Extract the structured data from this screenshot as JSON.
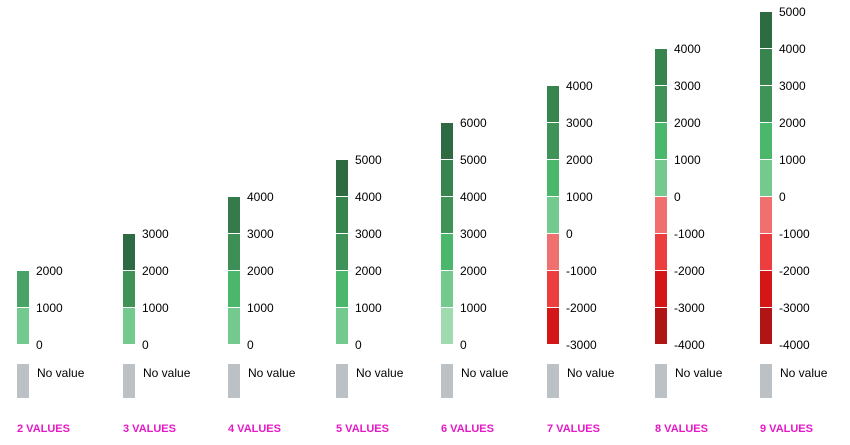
{
  "no_value_label": "No value",
  "no_value_color": "#bcc1c6",
  "caption_color": "#e619c9",
  "legends": [
    {
      "caption": "2 VALUES",
      "ticks": [
        "2000",
        "1000",
        "0"
      ],
      "colors": [
        "#4aa366",
        "#74c98e"
      ]
    },
    {
      "caption": "3 VALUES",
      "ticks": [
        "3000",
        "2000",
        "1000",
        "0"
      ],
      "colors": [
        "#2f6b42",
        "#3f9359",
        "#74c98e"
      ]
    },
    {
      "caption": "4 VALUES",
      "ticks": [
        "4000",
        "3000",
        "2000",
        "1000",
        "0"
      ],
      "colors": [
        "#357a4b",
        "#3d8f56",
        "#4ab76a",
        "#74c98e"
      ]
    },
    {
      "caption": "5 VALUES",
      "ticks": [
        "5000",
        "4000",
        "3000",
        "2000",
        "1000",
        "0"
      ],
      "colors": [
        "#2f6b42",
        "#37844f",
        "#3f9359",
        "#4ab76a",
        "#74c98e"
      ]
    },
    {
      "caption": "6 VALUES",
      "ticks": [
        "6000",
        "5000",
        "4000",
        "3000",
        "2000",
        "1000",
        "0"
      ],
      "colors": [
        "#2f6b42",
        "#37844f",
        "#3f9359",
        "#4ab76a",
        "#74c98e",
        "#a0dbb0"
      ]
    },
    {
      "caption": "7 VALUES",
      "ticks": [
        "4000",
        "3000",
        "2000",
        "1000",
        "0",
        "-1000",
        "-2000",
        "-3000"
      ],
      "colors": [
        "#37844f",
        "#3f9359",
        "#4ab76a",
        "#74c98e",
        "#f07070",
        "#ec3e3e",
        "#d41616"
      ]
    },
    {
      "caption": "8 VALUES",
      "ticks": [
        "4000",
        "3000",
        "2000",
        "1000",
        "0",
        "-1000",
        "-2000",
        "-3000",
        "-4000"
      ],
      "colors": [
        "#37844f",
        "#3f9359",
        "#4ab76a",
        "#74c98e",
        "#f07070",
        "#ec3e3e",
        "#d41616",
        "#b01515"
      ]
    },
    {
      "caption": "9 VALUES",
      "ticks": [
        "5000",
        "4000",
        "3000",
        "2000",
        "1000",
        "0",
        "-1000",
        "-2000",
        "-3000",
        "-4000"
      ],
      "colors": [
        "#2f6b42",
        "#37844f",
        "#3f9359",
        "#4ab76a",
        "#74c98e",
        "#f07070",
        "#ec3e3e",
        "#d41616",
        "#b01515"
      ]
    }
  ]
}
